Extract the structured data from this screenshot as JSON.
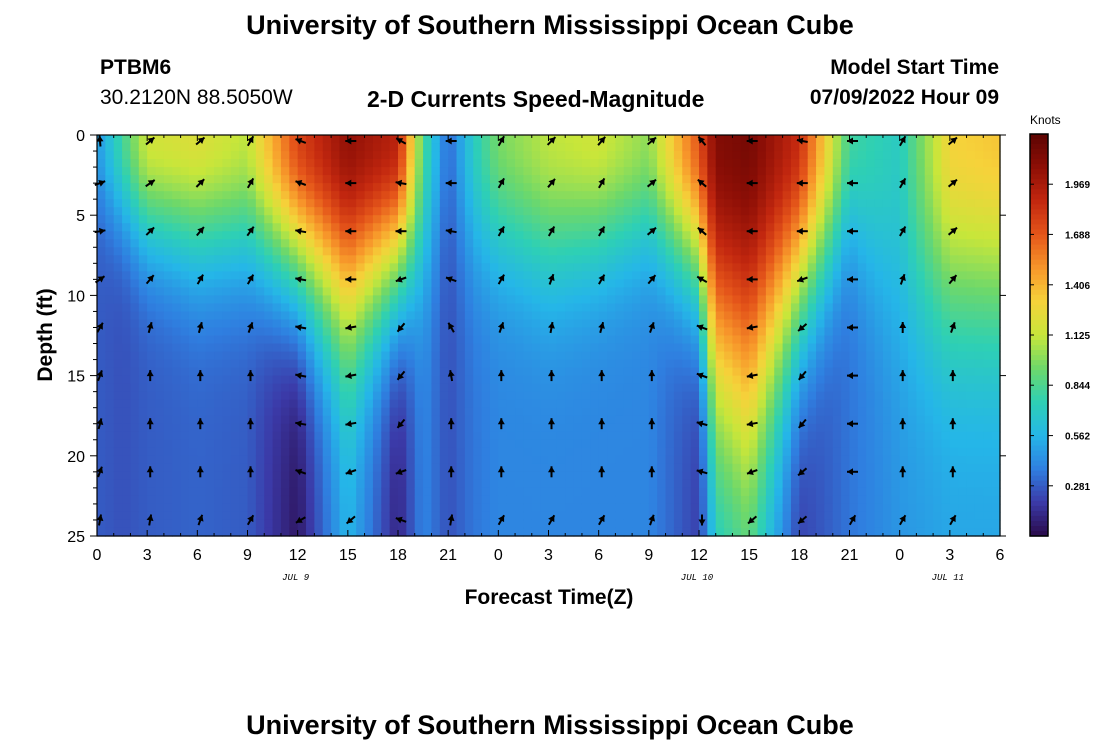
{
  "header": {
    "title": "University of Southern Mississippi Ocean Cube",
    "station_id": "PTBM6",
    "station_coords": "30.2120N  88.5050W",
    "subtitle": "2-D Currents Speed-Magnitude",
    "model_start_label": "Model Start Time",
    "model_start_value": "07/09/2022 Hour 09"
  },
  "footer": {
    "title": "University of Southern Mississippi Ocean Cube"
  },
  "colors": {
    "ramp": [
      "#2a0a4a",
      "#3b3aa8",
      "#2f7fe0",
      "#25b6e8",
      "#2ed0b4",
      "#6ed86a",
      "#c8e63a",
      "#f6d23a",
      "#f7962a",
      "#e5561a",
      "#c2270f",
      "#8e0f06",
      "#5c0402"
    ]
  },
  "chart_data": {
    "type": "heatmap",
    "title": "2-D Currents Speed-Magnitude",
    "xlabel": "Forecast Time(Z)",
    "ylabel": "Depth (ft)",
    "x_ticks": [
      "0",
      "3",
      "6",
      "9",
      "12",
      "15",
      "18",
      "21",
      "0",
      "3",
      "6",
      "9",
      "12",
      "15",
      "18",
      "21",
      "0",
      "3",
      "6"
    ],
    "x_range_hours": [
      0,
      54
    ],
    "day_labels": [
      {
        "label": "JUL 9",
        "hour": 12
      },
      {
        "label": "JUL 10",
        "hour": 36
      },
      {
        "label": "JUL 11",
        "hour": 51
      }
    ],
    "y_ticks": [
      "0",
      "5",
      "10",
      "15",
      "20",
      "25"
    ],
    "ylim": [
      0,
      25
    ],
    "colorbar": {
      "unit_label": "Knots",
      "ticks": [
        "1.969",
        "1.688",
        "1.406",
        "1.125",
        "0.844",
        "0.562",
        "0.281"
      ],
      "tick_values": [
        1.969,
        1.688,
        1.406,
        1.125,
        0.844,
        0.562,
        0.281
      ],
      "range": [
        0,
        2.25
      ]
    },
    "speed_profile": {
      "hours": [
        0,
        1.5,
        3,
        6,
        9,
        12,
        15,
        18,
        19.5,
        21,
        22.5,
        24,
        27,
        30,
        33,
        36,
        37,
        39,
        42,
        45,
        48,
        51,
        54
      ],
      "surface": [
        0.45,
        0.8,
        1.15,
        1.2,
        1.1,
        1.75,
        2.05,
        1.9,
        0.85,
        0.3,
        0.7,
        0.95,
        1.1,
        1.15,
        1.0,
        1.7,
        2.1,
        2.15,
        1.85,
        0.8,
        0.7,
        1.3,
        1.35
      ],
      "decay": [
        5,
        6,
        7,
        8,
        8,
        10,
        12,
        10,
        9,
        7,
        8,
        8,
        9,
        8,
        7,
        10,
        16,
        18,
        12,
        7,
        12,
        12,
        12
      ],
      "bottom": [
        0.28,
        0.25,
        0.28,
        0.3,
        0.28,
        0.05,
        0.55,
        0.1,
        0.4,
        0.25,
        0.35,
        0.4,
        0.4,
        0.4,
        0.4,
        0.2,
        0.6,
        0.7,
        0.2,
        0.35,
        0.45,
        0.5,
        0.5
      ]
    },
    "vector_hours": [
      0,
      3,
      6,
      9,
      12,
      15,
      18,
      21,
      24,
      27,
      30,
      33,
      36,
      39,
      42,
      45,
      48,
      51
    ],
    "vector_depths": [
      0,
      3,
      6,
      9,
      12,
      15,
      18,
      21,
      24
    ],
    "vector_columns": [
      [
        95,
        20,
        10,
        35,
        60,
        70,
        75,
        70,
        80
      ],
      [
        40,
        35,
        45,
        50,
        75,
        90,
        90,
        90,
        80
      ],
      [
        40,
        45,
        50,
        60,
        75,
        90,
        90,
        90,
        70
      ],
      [
        60,
        60,
        55,
        60,
        70,
        90,
        90,
        90,
        60
      ],
      [
        160,
        160,
        170,
        170,
        170,
        170,
        170,
        160,
        210
      ],
      [
        180,
        180,
        180,
        180,
        190,
        190,
        190,
        200,
        220
      ],
      [
        150,
        170,
        180,
        200,
        230,
        230,
        230,
        200,
        160
      ],
      [
        180,
        180,
        170,
        160,
        120,
        100,
        90,
        90,
        80
      ],
      [
        60,
        60,
        60,
        60,
        70,
        90,
        90,
        90,
        60
      ],
      [
        45,
        50,
        60,
        70,
        80,
        90,
        90,
        90,
        60
      ],
      [
        50,
        60,
        60,
        60,
        75,
        90,
        90,
        90,
        60
      ],
      [
        40,
        40,
        40,
        50,
        70,
        90,
        90,
        90,
        70
      ],
      [
        130,
        140,
        140,
        150,
        160,
        160,
        165,
        165,
        270
      ],
      [
        180,
        180,
        180,
        180,
        190,
        190,
        190,
        200,
        220
      ],
      [
        170,
        180,
        180,
        200,
        220,
        230,
        230,
        220,
        220
      ],
      [
        180,
        180,
        180,
        180,
        180,
        180,
        180,
        180,
        60
      ],
      [
        60,
        60,
        60,
        70,
        90,
        90,
        90,
        90,
        60
      ],
      [
        40,
        40,
        40,
        50,
        70,
        90,
        90,
        90,
        60
      ]
    ]
  }
}
